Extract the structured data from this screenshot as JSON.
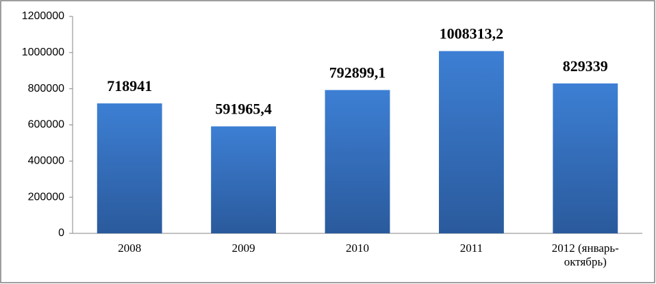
{
  "chart_data": {
    "type": "bar",
    "categories": [
      "2008",
      "2009",
      "2010",
      "2011",
      "2012 (январь-октябрь)"
    ],
    "values": [
      718941,
      591965.4,
      792899.1,
      1008313.2,
      829339
    ],
    "value_labels": [
      "718941",
      "591965,4",
      "792899,1",
      "1008313,2",
      "829339"
    ],
    "color": "#3a78c8",
    "ylim": [
      0,
      1200000
    ],
    "yticks": [
      0,
      200000,
      400000,
      600000,
      800000,
      1000000,
      1200000
    ],
    "grid": false
  }
}
